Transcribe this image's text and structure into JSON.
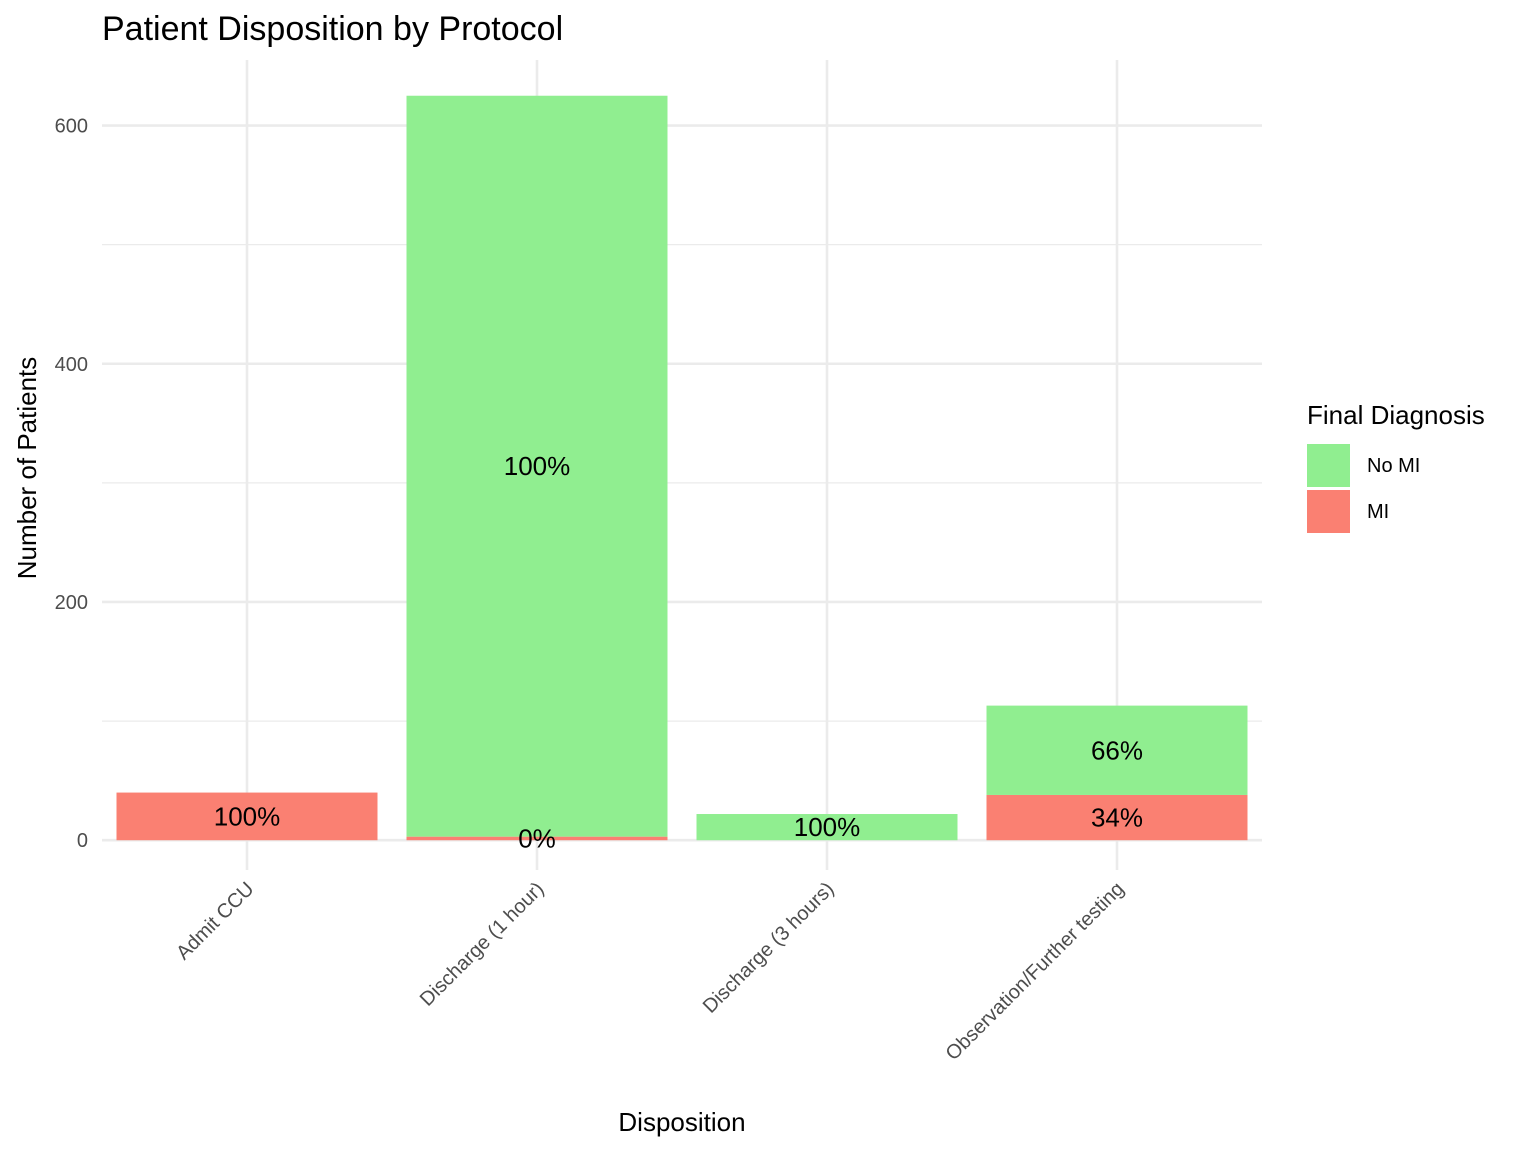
{
  "chart_data": {
    "type": "bar",
    "stacked": true,
    "title": "Patient Disposition by Protocol",
    "xlabel": "Disposition",
    "ylabel": "Number of Patients",
    "categories": [
      "Admit CCU",
      "Discharge (1 hour)",
      "Discharge (3 hours)",
      "Observation/Further testing"
    ],
    "ylim": [
      -25,
      655
    ],
    "yticks": [
      0,
      200,
      400,
      600
    ],
    "grid": true,
    "legend": {
      "title": "Final Diagnosis",
      "position": "right",
      "entries": [
        "No MI",
        "MI"
      ]
    },
    "series": [
      {
        "name": "MI",
        "color": "#FA8072",
        "values": [
          40,
          3,
          0,
          38
        ],
        "labels": [
          "100%",
          "0%",
          null,
          "34%"
        ]
      },
      {
        "name": "No MI",
        "color": "#90EE90",
        "values": [
          0,
          622,
          22,
          75
        ],
        "labels": [
          null,
          "100%",
          "100%",
          "66%"
        ]
      }
    ]
  }
}
